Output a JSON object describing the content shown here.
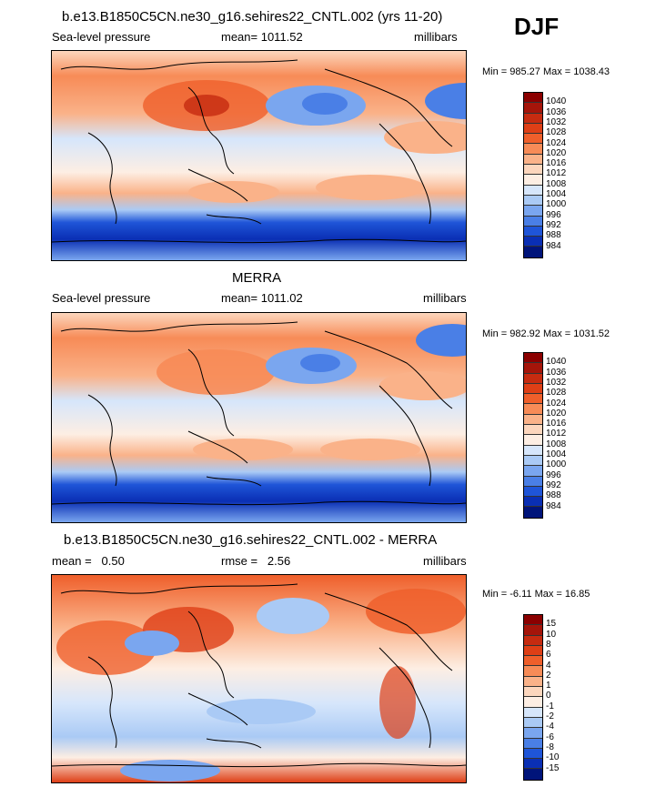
{
  "season": "DJF",
  "panels": [
    {
      "title": "b.e13.B1850C5CN.ne30_g16.sehires22_CNTL.002 (yrs 11-20)",
      "left_label": "Sea-level pressure",
      "center_label": "mean= 1011.52",
      "right_label": "millibars",
      "minmax": "Min = 985.27 Max = 1038.43",
      "colorbar": {
        "labels": [
          "1040",
          "1036",
          "1032",
          "1028",
          "1024",
          "1020",
          "1016",
          "1012",
          "1008",
          "1004",
          "1000",
          "996",
          "992",
          "988",
          "984"
        ],
        "colors": [
          "#8b0000",
          "#a5150a",
          "#c62b10",
          "#de3f16",
          "#ef5f2b",
          "#f78b57",
          "#fab289",
          "#fcd6bd",
          "#fdeee3",
          "#d6e6fb",
          "#aacaf5",
          "#7aa6ef",
          "#4a7fe6",
          "#1f55d8",
          "#0a2fb4",
          "#00147a"
        ]
      }
    },
    {
      "title": "MERRA",
      "left_label": "Sea-level pressure",
      "center_label": "mean= 1011.02",
      "right_label": "millibars",
      "minmax": "Min = 982.92 Max = 1031.52",
      "colorbar": {
        "labels": [
          "1040",
          "1036",
          "1032",
          "1028",
          "1024",
          "1020",
          "1016",
          "1012",
          "1008",
          "1004",
          "1000",
          "996",
          "992",
          "988",
          "984"
        ],
        "colors": [
          "#8b0000",
          "#a5150a",
          "#c62b10",
          "#de3f16",
          "#ef5f2b",
          "#f78b57",
          "#fab289",
          "#fcd6bd",
          "#fdeee3",
          "#d6e6fb",
          "#aacaf5",
          "#7aa6ef",
          "#4a7fe6",
          "#1f55d8",
          "#0a2fb4",
          "#00147a"
        ]
      }
    },
    {
      "title": "b.e13.B1850C5CN.ne30_g16.sehires22_CNTL.002 - MERRA",
      "left_label": "mean =   0.50",
      "center_label": "rmse =   2.56",
      "right_label": "millibars",
      "minmax": "Min =  -6.11 Max =  16.85",
      "colorbar": {
        "labels": [
          "15",
          "10",
          "8",
          "6",
          "4",
          "2",
          "1",
          "0",
          "-1",
          "-2",
          "-4",
          "-6",
          "-8",
          "-10",
          "-15"
        ],
        "colors": [
          "#8b0000",
          "#a5150a",
          "#c62b10",
          "#de3f16",
          "#ef5f2b",
          "#f78b57",
          "#fab289",
          "#fcd6bd",
          "#fdeee3",
          "#d6e6fb",
          "#aacaf5",
          "#7aa6ef",
          "#4a7fe6",
          "#1f55d8",
          "#0a2fb4",
          "#00147a"
        ]
      }
    }
  ],
  "chart_data": [
    {
      "type": "heatmap",
      "title": "b.e13.B1850C5CN.ne30_g16.sehires22_CNTL.002 (yrs 11-20)",
      "variable": "Sea-level pressure",
      "units": "millibars",
      "season": "DJF",
      "mean": 1011.52,
      "min": 985.27,
      "max": 1038.43,
      "contour_levels": [
        984,
        988,
        992,
        996,
        1000,
        1004,
        1008,
        1012,
        1016,
        1020,
        1024,
        1028,
        1032,
        1036,
        1040
      ]
    },
    {
      "type": "heatmap",
      "title": "MERRA",
      "variable": "Sea-level pressure",
      "units": "millibars",
      "season": "DJF",
      "mean": 1011.02,
      "min": 982.92,
      "max": 1031.52,
      "contour_levels": [
        984,
        988,
        992,
        996,
        1000,
        1004,
        1008,
        1012,
        1016,
        1020,
        1024,
        1028,
        1032,
        1036,
        1040
      ]
    },
    {
      "type": "heatmap",
      "title": "b.e13.B1850C5CN.ne30_g16.sehires22_CNTL.002 - MERRA",
      "units": "millibars",
      "season": "DJF",
      "mean": 0.5,
      "rmse": 2.56,
      "min": -6.11,
      "max": 16.85,
      "contour_levels": [
        -15,
        -10,
        -8,
        -6,
        -4,
        -2,
        -1,
        0,
        1,
        2,
        4,
        6,
        8,
        10,
        15
      ]
    }
  ]
}
